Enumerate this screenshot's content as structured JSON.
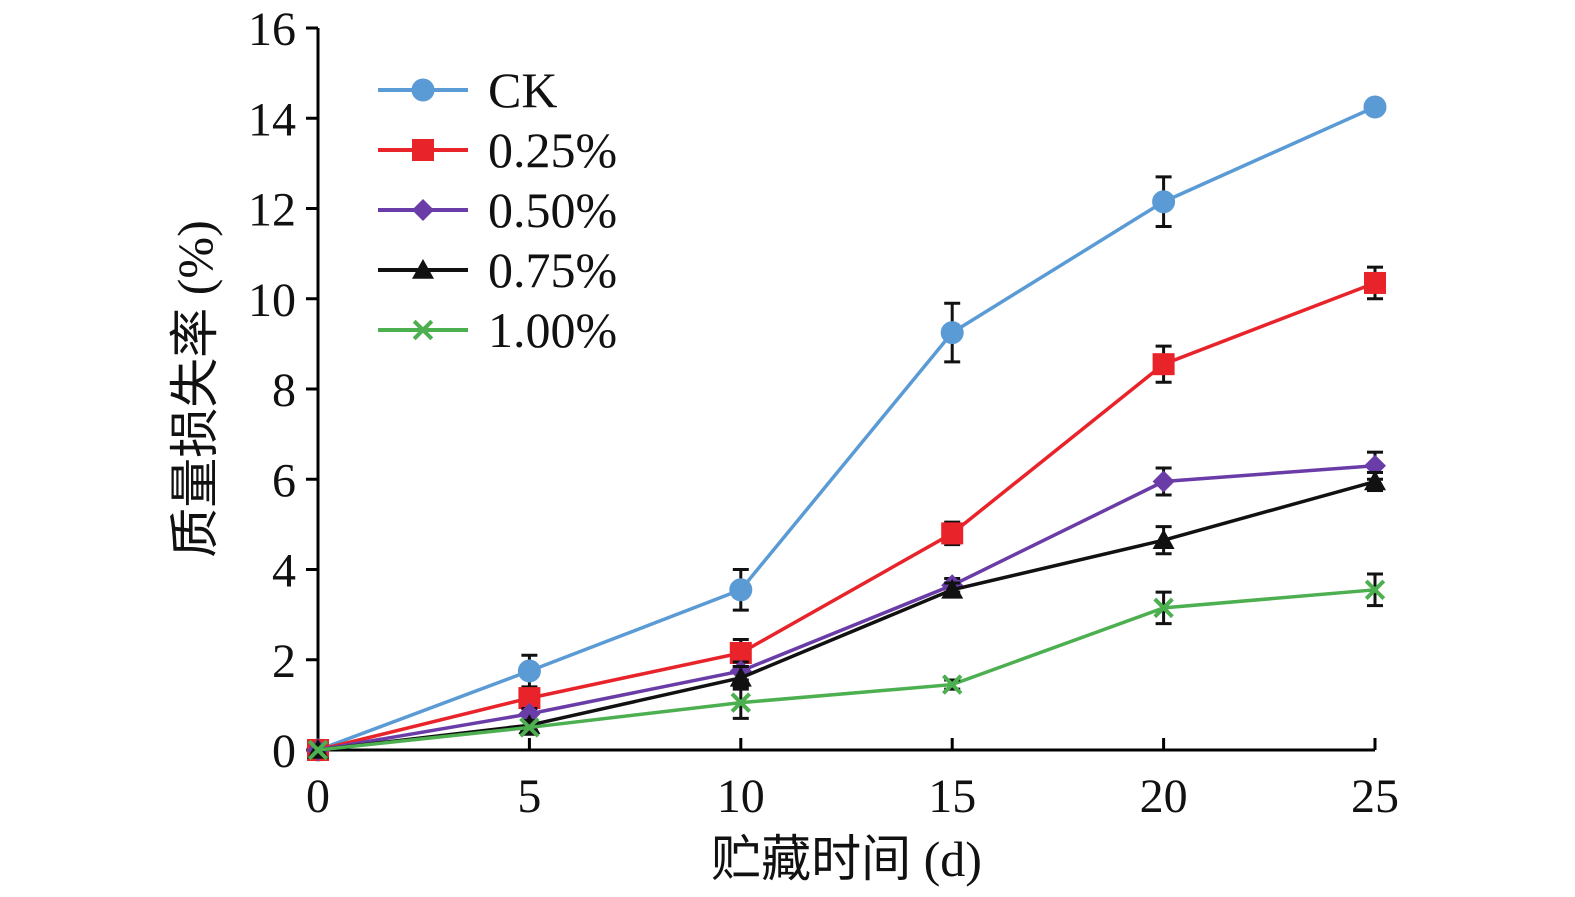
{
  "chart_data": {
    "type": "line",
    "xlabel": "贮藏时间 (d)",
    "ylabel": "质量损失率 (%)",
    "x": [
      0,
      5,
      10,
      15,
      20,
      25
    ],
    "xlim": [
      0,
      25
    ],
    "ylim": [
      0,
      16
    ],
    "xticks": [
      "0",
      "5",
      "10",
      "15",
      "20",
      "25"
    ],
    "yticks": [
      "0",
      "2",
      "4",
      "6",
      "8",
      "10",
      "12",
      "14",
      "16"
    ],
    "grid": false,
    "legend_position": "top-left",
    "series": [
      {
        "name": "CK",
        "color": "#5B9BD5",
        "marker": "circle",
        "values": [
          0,
          1.75,
          3.55,
          9.25,
          12.15,
          14.25
        ],
        "errors": [
          0,
          0.35,
          0.45,
          0.65,
          0.55,
          0.15
        ]
      },
      {
        "name": "0.25%",
        "color": "#E8242A",
        "marker": "square",
        "values": [
          0,
          1.15,
          2.15,
          4.8,
          8.55,
          10.35
        ],
        "errors": [
          0,
          0.15,
          0.3,
          0.25,
          0.4,
          0.35
        ]
      },
      {
        "name": "0.50%",
        "color": "#6A3CA8",
        "marker": "diamond",
        "values": [
          0,
          0.8,
          1.75,
          3.65,
          5.95,
          6.3
        ],
        "errors": [
          0,
          0.12,
          0.2,
          0.15,
          0.3,
          0.3
        ]
      },
      {
        "name": "0.75%",
        "color": "#111111",
        "marker": "triangle",
        "values": [
          0,
          0.55,
          1.6,
          3.55,
          4.65,
          5.95
        ],
        "errors": [
          0,
          0.1,
          0.25,
          0.15,
          0.3,
          0.2
        ]
      },
      {
        "name": "1.00%",
        "color": "#4CAF50",
        "marker": "x",
        "values": [
          0,
          0.5,
          1.05,
          1.45,
          3.15,
          3.55
        ],
        "errors": [
          0,
          0.15,
          0.35,
          0.1,
          0.35,
          0.35
        ]
      }
    ]
  }
}
